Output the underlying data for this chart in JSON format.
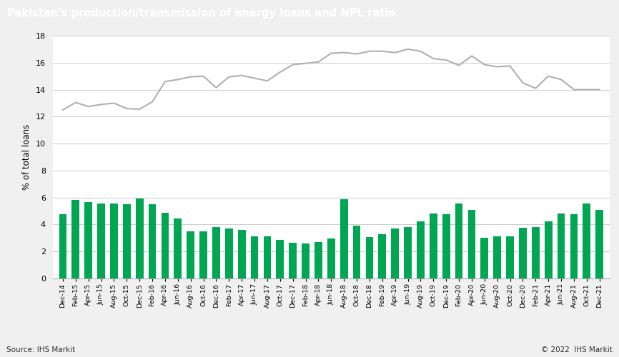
{
  "title": "Pakistan's production/transmission of energy loans and NPL ratio",
  "ylabel": "% of total loans",
  "title_bg_color": "#6d6d6d",
  "title_text_color": "#ffffff",
  "bar_color": "#00a651",
  "line_color": "#b0b0b0",
  "background_color": "#f0f0f0",
  "plot_bg_color": "#ffffff",
  "grid_color": "#cccccc",
  "source_text": "Source: IHS Markit",
  "copyright_text": "© 2022  IHS Markit",
  "ylim": [
    0,
    18
  ],
  "yticks": [
    0,
    2,
    4,
    6,
    8,
    10,
    12,
    14,
    16,
    18
  ],
  "categories": [
    "Dec-14",
    "Feb-15",
    "Apr-15",
    "Jun-15",
    "Aug-15",
    "Oct-15",
    "Dec-15",
    "Feb-16",
    "Apr-16",
    "Jun-16",
    "Aug-16",
    "Oct-16",
    "Dec-16",
    "Feb-17",
    "Apr-17",
    "Jun-17",
    "Aug-17",
    "Oct-17",
    "Dec-17",
    "Feb-18",
    "Apr-18",
    "Jun-18",
    "Aug-18",
    "Oct-18",
    "Dec-18",
    "Feb-19",
    "Apr-19",
    "Jun-19",
    "Aug-19",
    "Oct-19",
    "Dec-19",
    "Feb-20",
    "Apr-20",
    "Jun-20",
    "Aug-20",
    "Oct-20",
    "Dec-20",
    "Feb-21",
    "Apr-21",
    "Jun-21",
    "Aug-21",
    "Oct-21",
    "Dec-21"
  ],
  "npl_values": [
    4.75,
    5.85,
    5.65,
    5.55,
    5.55,
    5.5,
    5.95,
    5.5,
    4.85,
    4.45,
    3.5,
    3.5,
    3.8,
    3.7,
    3.6,
    3.15,
    3.15,
    2.85,
    2.65,
    2.6,
    2.7,
    2.95,
    5.9,
    3.9,
    3.05,
    3.3,
    3.7,
    3.8,
    4.25,
    4.8,
    4.75,
    5.55,
    5.1,
    3.0,
    3.15,
    3.15,
    3.75,
    3.8,
    4.25,
    4.8,
    4.75,
    5.55,
    5.1
  ],
  "energy_values": [
    12.5,
    13.05,
    12.75,
    12.9,
    13.0,
    12.6,
    12.55,
    13.1,
    14.6,
    14.75,
    14.95,
    15.0,
    14.15,
    14.95,
    15.05,
    14.85,
    14.65,
    15.3,
    15.85,
    15.95,
    16.05,
    16.7,
    16.75,
    16.65,
    16.85,
    16.85,
    16.75,
    17.0,
    16.85,
    16.3,
    16.2,
    15.8,
    16.5,
    15.85,
    15.7,
    15.75,
    14.5,
    14.1,
    15.0,
    14.75,
    14.0,
    14.0,
    14.0
  ]
}
